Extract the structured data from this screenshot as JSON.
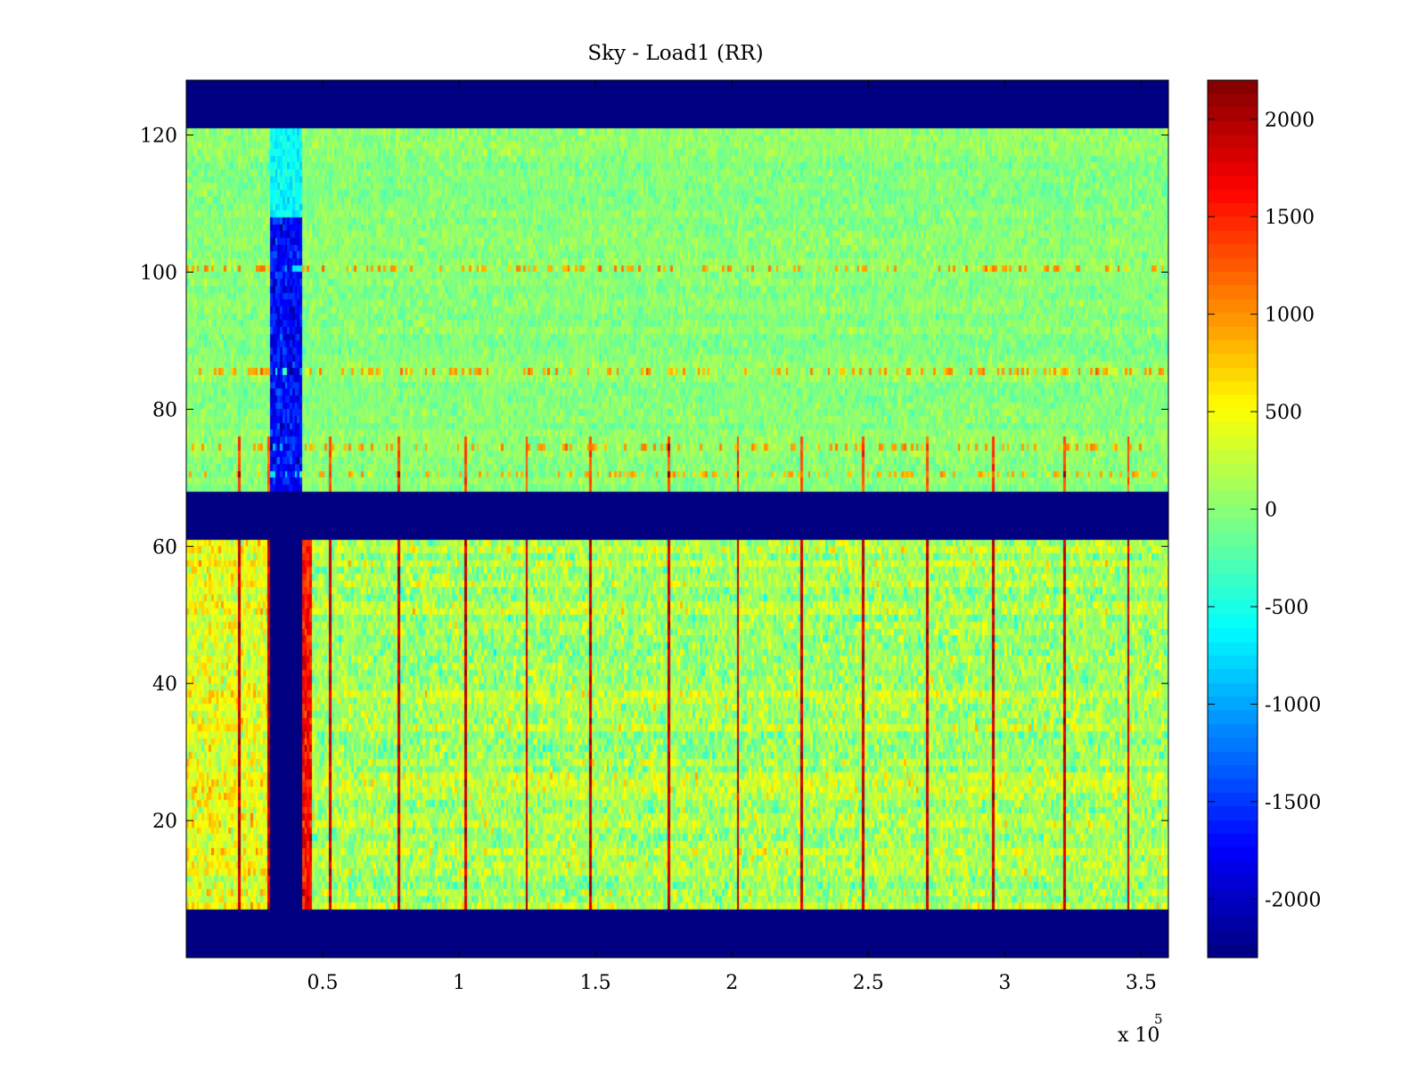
{
  "chart_data": {
    "type": "heatmap",
    "title": "Sky - Load1 (RR)",
    "xlabel": "",
    "ylabel": "",
    "colormap": "jet",
    "x_range": [
      0,
      360000
    ],
    "y_range": [
      0,
      128
    ],
    "x_ticks": [
      50000,
      100000,
      150000,
      200000,
      250000,
      300000,
      350000
    ],
    "x_tick_labels": [
      "0.5",
      "1",
      "1.5",
      "2",
      "2.5",
      "3",
      "3.5"
    ],
    "x_exponent_label": "x 10",
    "x_exponent_power": "5",
    "y_ticks": [
      20,
      40,
      60,
      80,
      100,
      120
    ],
    "y_tick_labels": [
      "20",
      "40",
      "60",
      "80",
      "100",
      "120"
    ],
    "color_range": [
      -2300,
      2200
    ],
    "colorbar_ticks": [
      2000,
      1500,
      1000,
      500,
      0,
      -500,
      -1000,
      -1500,
      -2000
    ],
    "colorbar_tick_labels": [
      "2000",
      "1500",
      "1000",
      "500",
      "0",
      "-500",
      "-1000",
      "-1500",
      "-2000"
    ],
    "masked_value": -2300,
    "masked_rows": [
      [
        0,
        7
      ],
      [
        61,
        68
      ],
      [
        121,
        128
      ]
    ],
    "masked_column_band": {
      "x": [
        31000,
        42000
      ],
      "rows": [
        7,
        61
      ]
    },
    "upper_block": {
      "rows": [
        68,
        121
      ],
      "typical_value": 0
    },
    "lower_block": {
      "rows": [
        7,
        61
      ],
      "typical_value": 150
    },
    "upper_block_cold_band": {
      "x": [
        31000,
        42000
      ],
      "rows": [
        68,
        108
      ],
      "value": -1700
    },
    "hot_stripe_near_band": {
      "x": [
        42000,
        46000
      ],
      "rows": [
        7,
        61
      ],
      "value": 1600
    },
    "vertical_stripes_x": [
      19000,
      30000,
      53000,
      78000,
      102000,
      125000,
      148000,
      177000,
      202000,
      225000,
      248000,
      271000,
      296000,
      322000,
      345000
    ],
    "horizontal_feature_rows": [
      70,
      74,
      85,
      100
    ]
  }
}
